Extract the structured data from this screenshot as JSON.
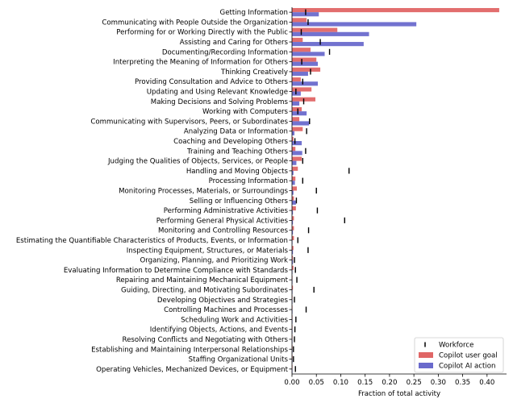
{
  "chart_data": {
    "type": "bar",
    "orientation": "horizontal",
    "xlabel": "Fraction of total activity",
    "xlim": [
      0,
      0.44
    ],
    "xticks": [
      "0.00",
      "0.05",
      "0.10",
      "0.15",
      "0.20",
      "0.25",
      "0.30",
      "0.35",
      "0.40"
    ],
    "legend_position": "lower-right",
    "categories": [
      "Getting Information",
      "Communicating with People Outside the Organization",
      "Performing for or Working Directly with the Public",
      "Assisting and Caring for Others",
      "Documenting/Recording Information",
      "Interpreting the Meaning of Information for Others",
      "Thinking Creatively",
      "Providing Consultation and Advice to Others",
      "Updating and Using Relevant Knowledge",
      "Making Decisions and Solving Problems",
      "Working with Computers",
      "Communicating with Supervisors, Peers, or Subordinates",
      "Analyzing Data or Information",
      "Coaching and Developing Others",
      "Training and Teaching Others",
      "Judging the Qualities of Objects, Services, or People",
      "Handling and Moving Objects",
      "Processing Information",
      "Monitoring Processes, Materials, or Surroundings",
      "Selling or Influencing Others",
      "Performing Administrative Activities",
      "Performing General Physical Activities",
      "Monitoring and Controlling Resources",
      "Estimating the Quantifiable Characteristics of Products, Events, or Information",
      "Inspecting Equipment, Structures, or Materials",
      "Organizing, Planning, and Prioritizing Work",
      "Evaluating Information to Determine Compliance with Standards",
      "Repairing and Maintaining Mechanical Equipment",
      "Guiding, Directing, and Motivating Subordinates",
      "Developing Objectives and Strategies",
      "Controlling Machines and Processes",
      "Scheduling Work and Activities",
      "Identifying Objects, Actions, and Events",
      "Resolving Conflicts and Negotiating with Others",
      "Establishing and Maintaining Interpersonal Relationships",
      "Staffing Organizational Units",
      "Operating Vehicles, Mechanized Devices, or Equipment"
    ],
    "series": [
      {
        "name": "Copilot user goal",
        "color": "#e06666",
        "values": [
          0.425,
          0.03,
          0.093,
          0.022,
          0.038,
          0.05,
          0.058,
          0.018,
          0.04,
          0.048,
          0.02,
          0.015,
          0.022,
          0.003,
          0.007,
          0.02,
          0.012,
          0.007,
          0.01,
          0.004,
          0.008,
          0.004,
          0.004,
          0.004,
          0.003,
          0.002,
          0.003,
          0.001,
          0.002,
          0.001,
          0.001,
          0.001,
          0.001,
          0.001,
          0.001,
          0.001,
          0.001
        ]
      },
      {
        "name": "Copilot AI action",
        "color": "#6a6acc",
        "values": [
          0.055,
          0.255,
          0.158,
          0.147,
          0.067,
          0.053,
          0.033,
          0.053,
          0.018,
          0.015,
          0.03,
          0.035,
          0.005,
          0.02,
          0.021,
          0.009,
          0.003,
          0.006,
          0.003,
          0.008,
          0.002,
          0.002,
          0.002,
          0.001,
          0.002,
          0.002,
          0.001,
          0.001,
          0.001,
          0.001,
          0.001,
          0.001,
          0.001,
          0.001,
          0.001,
          0.001,
          0.001
        ]
      },
      {
        "name": "Workforce",
        "color": "#000000",
        "marker": "|",
        "values": [
          0.028,
          0.033,
          0.019,
          0.058,
          0.077,
          0.02,
          0.038,
          0.022,
          0.008,
          0.024,
          0.012,
          0.036,
          0.03,
          0.006,
          0.028,
          0.022,
          0.117,
          0.022,
          0.05,
          0.009,
          0.052,
          0.108,
          0.034,
          0.012,
          0.033,
          0.005,
          0.007,
          0.01,
          0.045,
          0.005,
          0.029,
          0.008,
          0.006,
          0.005,
          0.003,
          0.003,
          0.007
        ]
      }
    ]
  }
}
